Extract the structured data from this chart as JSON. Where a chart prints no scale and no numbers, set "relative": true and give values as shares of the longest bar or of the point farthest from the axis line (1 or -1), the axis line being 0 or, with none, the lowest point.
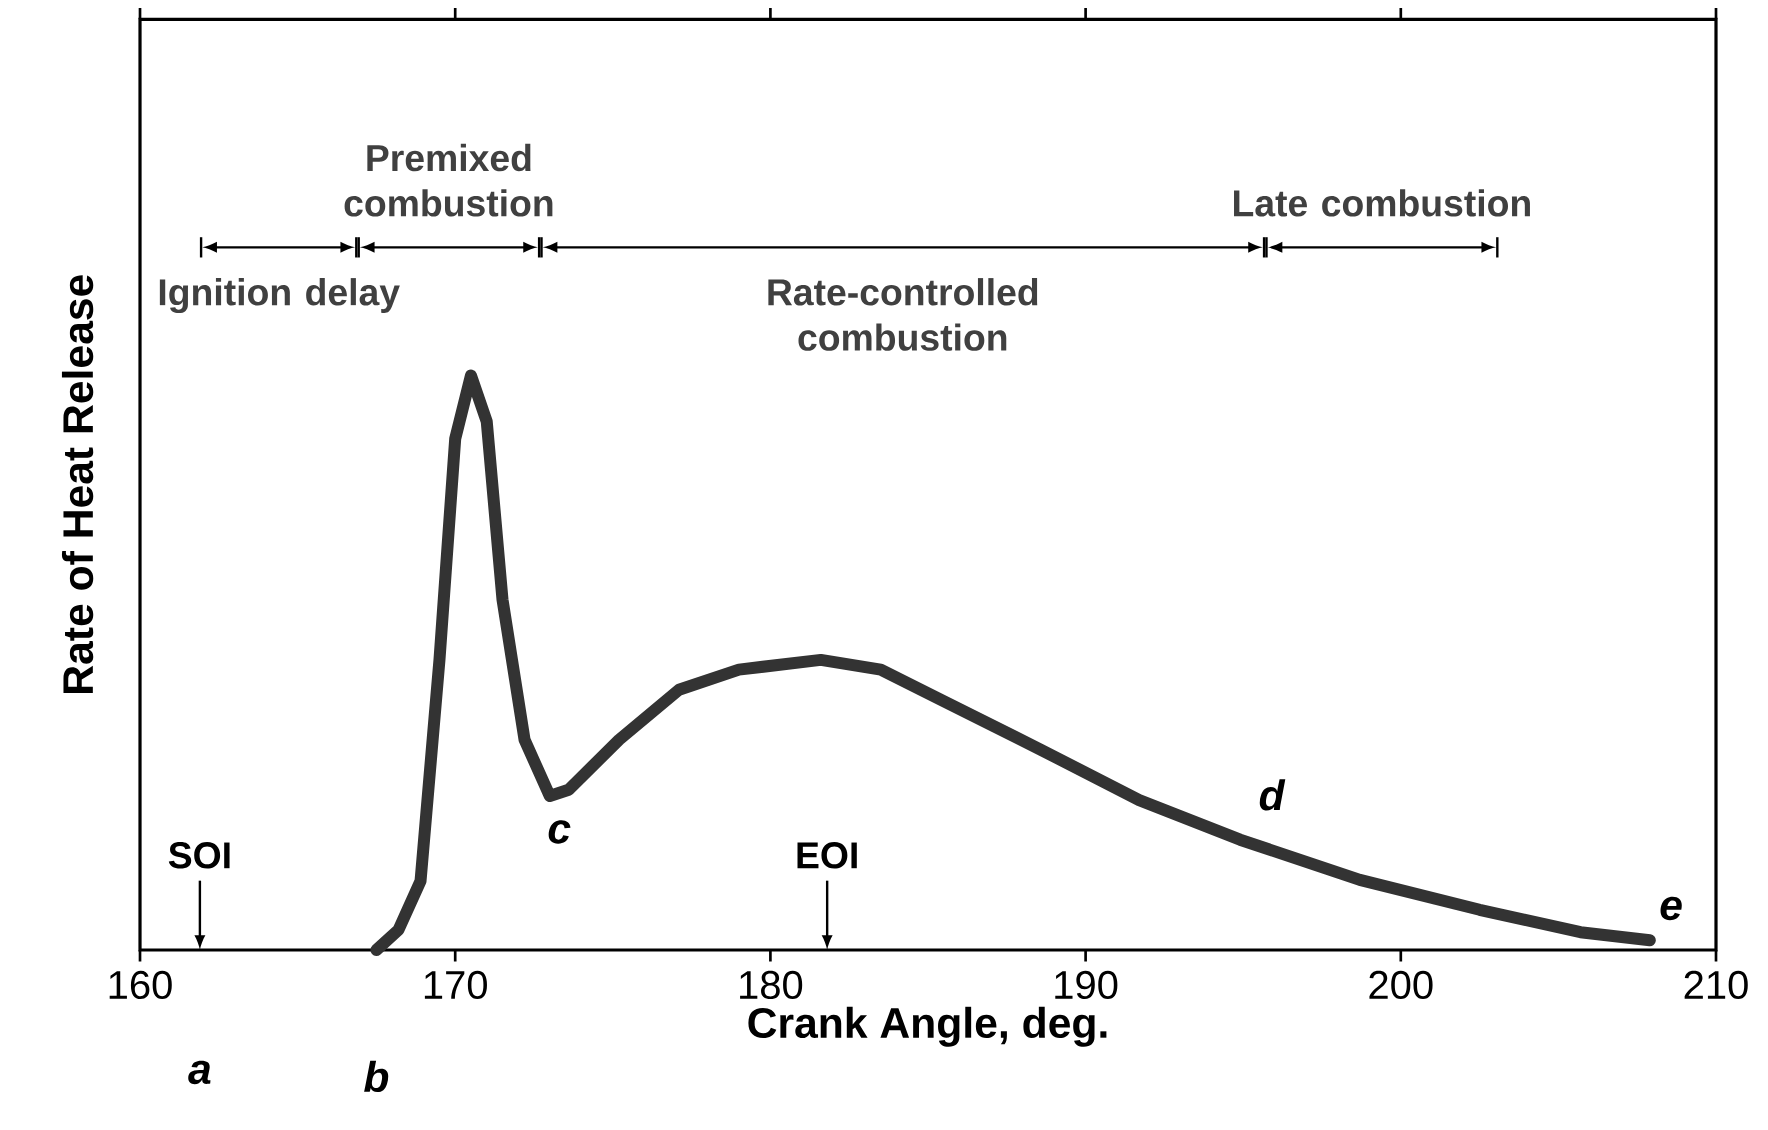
{
  "chart_data": {
    "type": "line",
    "relative": true,
    "xlabel": "Crank Angle, deg.",
    "ylabel": "Rate of Heat Release",
    "xlim": [
      160,
      210
    ],
    "xticks": [
      160,
      170,
      180,
      190,
      200,
      210
    ],
    "x": [
      167.5,
      168.2,
      168.9,
      169.5,
      170.0,
      170.5,
      171.0,
      171.5,
      172.2,
      173.0,
      173.6,
      175.2,
      177.1,
      179.0,
      181.6,
      183.5,
      185.4,
      188.6,
      191.7,
      194.9,
      198.7,
      202.5,
      205.7,
      207.9
    ],
    "series": [
      {
        "color": "#333333",
        "values": [
          0,
          0.035,
          0.12,
          0.505,
          0.89,
          1.0,
          0.92,
          0.61,
          0.366,
          0.268,
          0.279,
          0.366,
          0.453,
          0.488,
          0.505,
          0.488,
          0.436,
          0.348,
          0.261,
          0.192,
          0.122,
          0.07,
          0.031,
          0.017
        ]
      }
    ],
    "annotations": [
      "Ignition delay",
      "Premixed combustion",
      "Rate-controlled combustion",
      "Late combustion",
      "SOI",
      "EOI",
      "a",
      {
        "text": "b",
        "x": 167.5,
        "y": 0
      },
      {
        "text": "c",
        "x": 173.3,
        "y": 0.27
      },
      {
        "text": "d",
        "x": 195.9,
        "y": 0.18
      },
      {
        "text": "e",
        "x": 207.9,
        "y": 0.017
      }
    ]
  }
}
